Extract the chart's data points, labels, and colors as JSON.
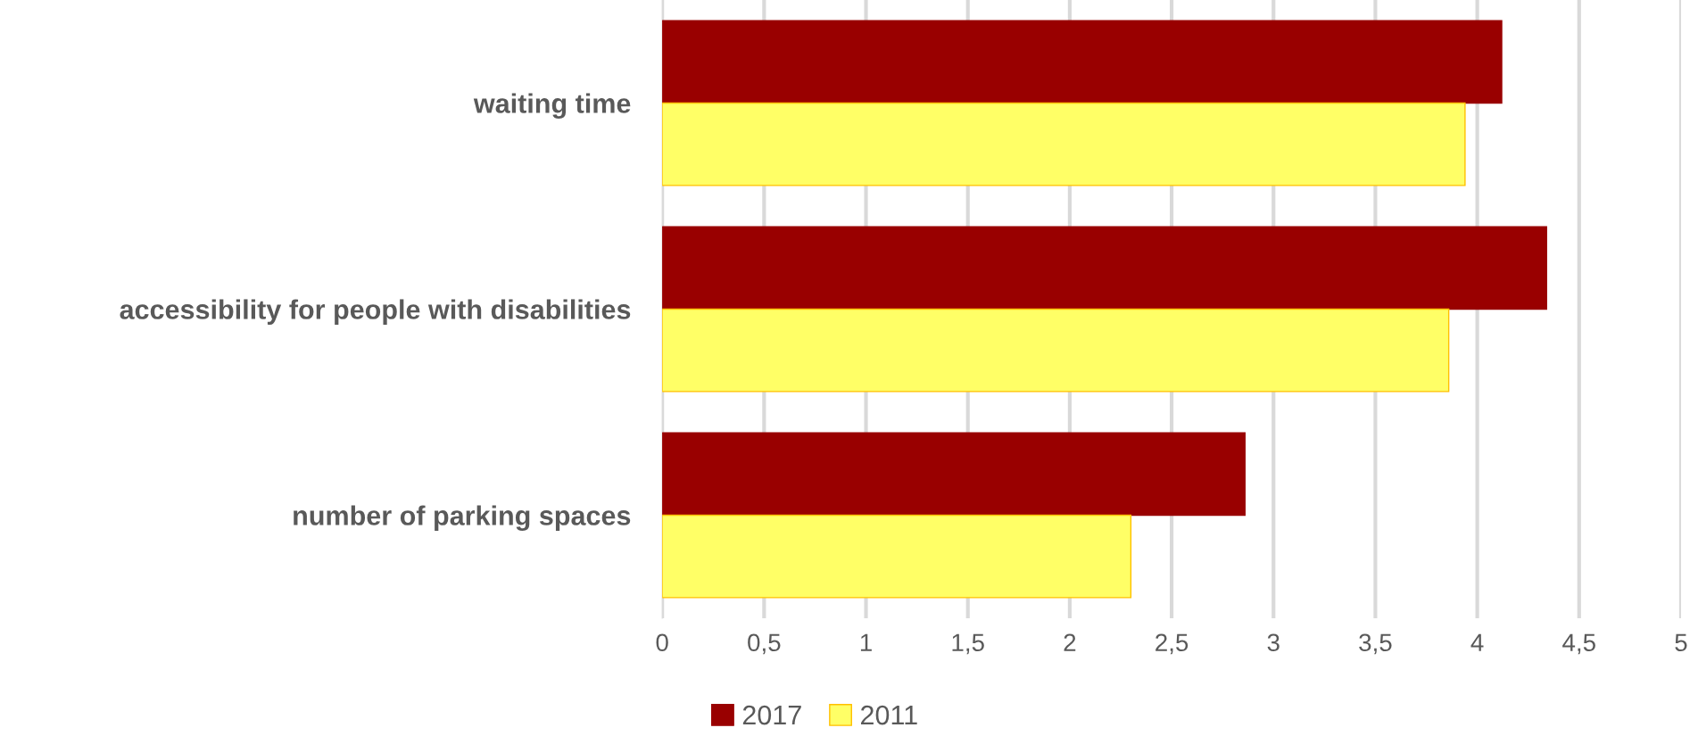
{
  "chart_data": {
    "type": "bar",
    "orientation": "horizontal",
    "categories": [
      "waiting time",
      "accessibility for people with disabilities",
      "number of parking spaces"
    ],
    "series": [
      {
        "name": "2017",
        "color": "#990000",
        "values": [
          4.12,
          4.34,
          2.86
        ]
      },
      {
        "name": "2011",
        "color": "#ffff66",
        "values": [
          3.94,
          3.86,
          2.3
        ]
      }
    ],
    "xlim": [
      0,
      5
    ],
    "xticks": [
      0,
      {
        "value": 0.5,
        "label": "0,5"
      },
      1,
      {
        "value": 1.5,
        "label": "1,5"
      },
      2,
      {
        "value": 2.5,
        "label": "2,5"
      },
      3,
      {
        "value": 3.5,
        "label": "3,5"
      },
      4,
      {
        "value": 4.5,
        "label": "4,5"
      },
      5
    ],
    "grid": "x",
    "legend": "bottom"
  }
}
